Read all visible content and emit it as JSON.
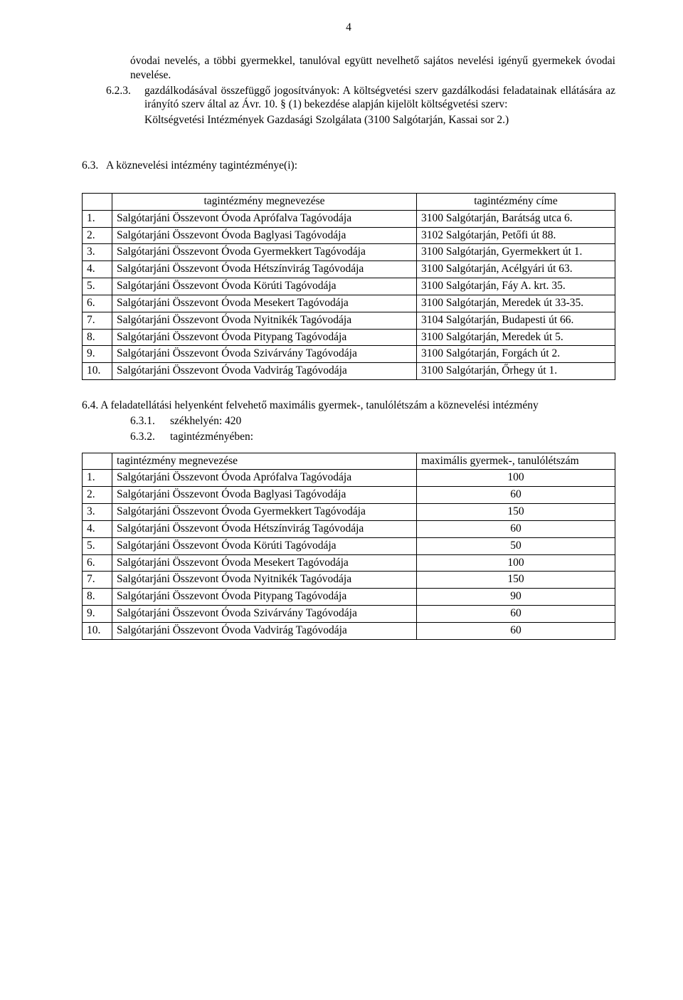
{
  "page_number": "4",
  "para_intro": "óvodai nevelés, a többi gyermekkel, tanulóval együtt nevelhető sajátos nevelési igényű gyermekek óvodai nevelése.",
  "item_623": {
    "num": "6.2.3.",
    "text": "gazdálkodásával összefüggő jogosítványok: A költségvetési szerv gazdálkodási feladatainak ellátására az irányító szerv által az Ávr. 10. § (1) bekezdése alapján kijelölt költségvetési szerv:"
  },
  "item_623_sub": "Költségvetési Intézmények Gazdasági Szolgálata (3100 Salgótarján, Kassai sor 2.)",
  "sec63": {
    "num": "6.3.",
    "text": "A köznevelési intézmény tagintézménye(i):"
  },
  "table1": {
    "headers": {
      "name": "tagintézmény megnevezése",
      "addr": "tagintézmény címe"
    },
    "rows": [
      {
        "n": "1.",
        "name": "Salgótarjáni Összevont Óvoda Aprófalva Tagóvodája",
        "addr": "3100 Salgótarján, Barátság utca 6."
      },
      {
        "n": "2.",
        "name": "Salgótarjáni Összevont Óvoda Baglyasi Tagóvodája",
        "addr": "3102 Salgótarján, Petőfi út 88."
      },
      {
        "n": "3.",
        "name": "Salgótarjáni Összevont Óvoda Gyermekkert Tagóvodája",
        "addr": "3100 Salgótarján, Gyermekkert út 1."
      },
      {
        "n": "4.",
        "name": "Salgótarjáni Összevont Óvoda Hétszínvirág Tagóvodája",
        "addr": "3100 Salgótarján, Acélgyári út 63."
      },
      {
        "n": "5.",
        "name": "Salgótarjáni Összevont Óvoda Körúti Tagóvodája",
        "addr": "3100 Salgótarján, Fáy A. krt. 35."
      },
      {
        "n": "6.",
        "name": "Salgótarjáni Összevont Óvoda Mesekert Tagóvodája",
        "addr": "3100 Salgótarján, Meredek út 33-35."
      },
      {
        "n": "7.",
        "name": "Salgótarjáni Összevont Óvoda Nyitnikék Tagóvodája",
        "addr": "3104 Salgótarján, Budapesti út 66."
      },
      {
        "n": "8.",
        "name": "Salgótarjáni Összevont Óvoda Pitypang Tagóvodája",
        "addr": "3100 Salgótarján, Meredek út 5."
      },
      {
        "n": "9.",
        "name": "Salgótarjáni Összevont Óvoda Szivárvány Tagóvodája",
        "addr": "3100 Salgótarján, Forgách út 2."
      },
      {
        "n": "10.",
        "name": "Salgótarjáni Összevont Óvoda Vadvirág Tagóvodája",
        "addr": "3100 Salgótarján, Őrhegy út 1."
      }
    ]
  },
  "sec64": "6.4. A feladatellátási helyenként felvehető maximális gyermek-, tanulólétszám a köznevelési intézmény",
  "sec64_631": {
    "num": "6.3.1.",
    "text": "székhelyén: 420"
  },
  "sec64_632": {
    "num": "6.3.2.",
    "text": "tagintézményében:"
  },
  "table2": {
    "headers": {
      "name": "tagintézmény megnevezése",
      "val": "maximális gyermek-, tanulólétszám"
    },
    "rows": [
      {
        "n": "1.",
        "name": "Salgótarjáni Összevont Óvoda Aprófalva Tagóvodája",
        "val": "100"
      },
      {
        "n": "2.",
        "name": "Salgótarjáni Összevont Óvoda Baglyasi Tagóvodája",
        "val": "60"
      },
      {
        "n": "3.",
        "name": "Salgótarjáni Összevont Óvoda Gyermekkert Tagóvodája",
        "val": "150"
      },
      {
        "n": "4.",
        "name": "Salgótarjáni Összevont Óvoda Hétszínvirág Tagóvodája",
        "val": "60"
      },
      {
        "n": "5.",
        "name": "Salgótarjáni Összevont Óvoda Körúti Tagóvodája",
        "val": "50"
      },
      {
        "n": "6.",
        "name": "Salgótarjáni Összevont Óvoda Mesekert Tagóvodája",
        "val": "100"
      },
      {
        "n": "7.",
        "name": "Salgótarjáni Összevont Óvoda Nyitnikék Tagóvodája",
        "val": "150"
      },
      {
        "n": "8.",
        "name": "Salgótarjáni Összevont Óvoda Pitypang Tagóvodája",
        "val": "90"
      },
      {
        "n": "9.",
        "name": "Salgótarjáni Összevont Óvoda Szivárvány Tagóvodája",
        "val": "60"
      },
      {
        "n": "10.",
        "name": "Salgótarjáni Összevont Óvoda Vadvirág Tagóvodája",
        "val": "60"
      }
    ]
  }
}
